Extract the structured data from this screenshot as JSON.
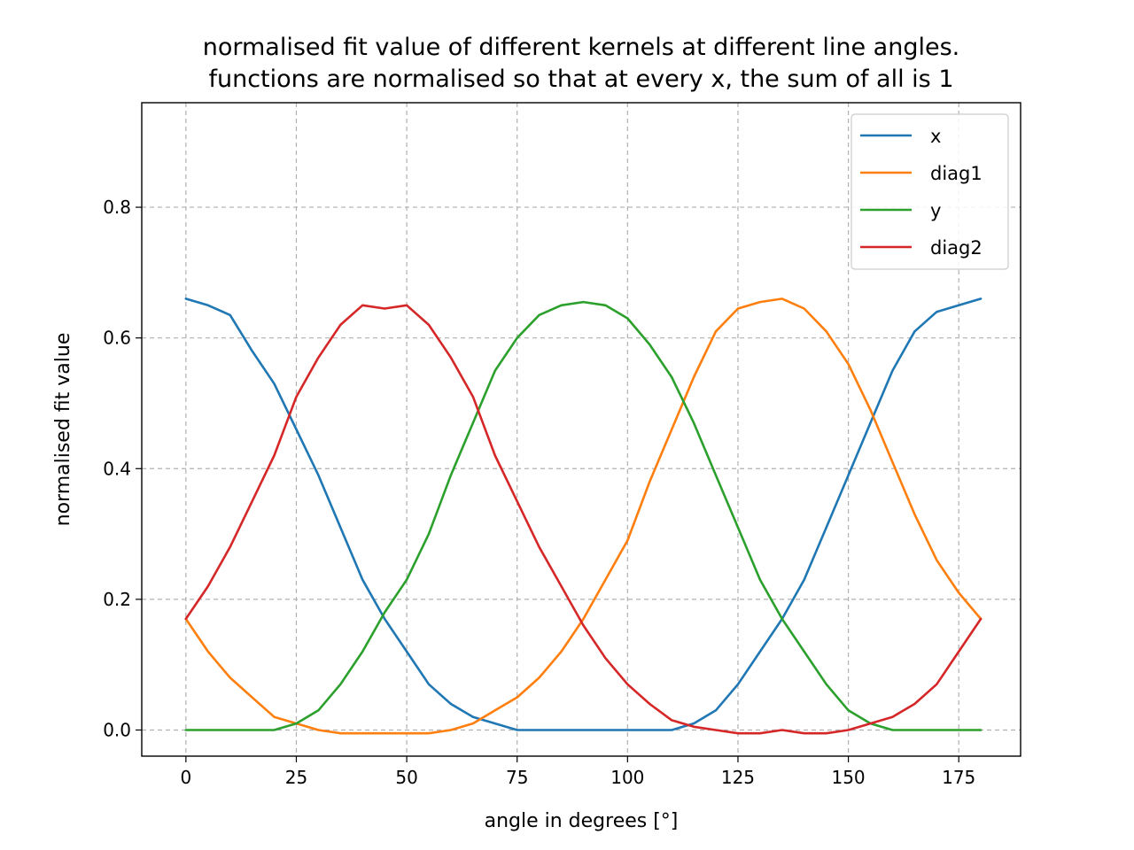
{
  "chart_data": {
    "type": "line",
    "title_line1": "normalised fit value of different kernels at different line angles.",
    "title_line2": "functions are normalised so that at every x, the sum of all is 1",
    "xlabel": "angle in degrees [°]",
    "ylabel": "normalised fit value",
    "xlim": [
      -10,
      189
    ],
    "ylim": [
      -0.04,
      0.96
    ],
    "xticks": [
      0,
      25,
      50,
      75,
      100,
      125,
      150,
      175
    ],
    "yticks": [
      0.0,
      0.2,
      0.4,
      0.6,
      0.8
    ],
    "xtick_labels": [
      "0",
      "25",
      "50",
      "75",
      "100",
      "125",
      "150",
      "175"
    ],
    "ytick_labels": [
      "0.0",
      "0.2",
      "0.4",
      "0.6",
      "0.8"
    ],
    "grid": true,
    "legend_position": "top-right",
    "series": [
      {
        "name": "x",
        "color": "#1f77b4",
        "x": [
          0,
          5,
          10,
          15,
          20,
          25,
          30,
          35,
          40,
          45,
          50,
          55,
          60,
          65,
          70,
          75,
          80,
          90,
          100,
          110,
          115,
          120,
          125,
          130,
          135,
          140,
          145,
          150,
          155,
          160,
          165,
          170,
          175,
          180
        ],
        "y": [
          0.66,
          0.65,
          0.635,
          0.58,
          0.53,
          0.46,
          0.39,
          0.31,
          0.23,
          0.17,
          0.12,
          0.07,
          0.04,
          0.02,
          0.01,
          0.0,
          0.0,
          0.0,
          0.0,
          0.0,
          0.01,
          0.03,
          0.07,
          0.12,
          0.17,
          0.23,
          0.31,
          0.39,
          0.47,
          0.55,
          0.61,
          0.64,
          0.65,
          0.66
        ]
      },
      {
        "name": "diag1",
        "color": "#ff7f0e",
        "x": [
          0,
          5,
          10,
          15,
          20,
          25,
          30,
          35,
          40,
          45,
          50,
          55,
          60,
          65,
          70,
          75,
          80,
          85,
          90,
          95,
          100,
          105,
          110,
          115,
          120,
          125,
          130,
          135,
          140,
          145,
          150,
          155,
          160,
          165,
          170,
          175,
          180
        ],
        "y": [
          0.17,
          0.12,
          0.08,
          0.05,
          0.02,
          0.01,
          0.0,
          -0.005,
          -0.005,
          -0.005,
          -0.005,
          -0.005,
          0.0,
          0.01,
          0.03,
          0.05,
          0.08,
          0.12,
          0.17,
          0.23,
          0.29,
          0.38,
          0.46,
          0.54,
          0.61,
          0.645,
          0.655,
          0.66,
          0.645,
          0.61,
          0.56,
          0.49,
          0.41,
          0.33,
          0.26,
          0.21,
          0.17
        ]
      },
      {
        "name": "y",
        "color": "#2ca02c",
        "x": [
          0,
          10,
          20,
          25,
          30,
          35,
          40,
          45,
          50,
          55,
          60,
          65,
          70,
          75,
          80,
          85,
          90,
          95,
          100,
          105,
          110,
          115,
          120,
          125,
          130,
          135,
          140,
          145,
          150,
          155,
          160,
          170,
          180
        ],
        "y": [
          0.0,
          0.0,
          0.0,
          0.01,
          0.03,
          0.07,
          0.12,
          0.18,
          0.23,
          0.3,
          0.39,
          0.47,
          0.55,
          0.6,
          0.635,
          0.65,
          0.655,
          0.65,
          0.63,
          0.59,
          0.54,
          0.47,
          0.39,
          0.31,
          0.23,
          0.17,
          0.12,
          0.07,
          0.03,
          0.01,
          0.0,
          0.0,
          0.0
        ]
      },
      {
        "name": "diag2",
        "color": "#d62728",
        "x": [
          0,
          5,
          10,
          15,
          20,
          25,
          30,
          35,
          40,
          45,
          50,
          55,
          60,
          65,
          70,
          75,
          80,
          85,
          90,
          95,
          100,
          105,
          110,
          115,
          120,
          125,
          130,
          135,
          140,
          145,
          150,
          155,
          160,
          165,
          170,
          175,
          180
        ],
        "y": [
          0.17,
          0.22,
          0.28,
          0.35,
          0.42,
          0.51,
          0.57,
          0.62,
          0.65,
          0.645,
          0.65,
          0.62,
          0.57,
          0.51,
          0.42,
          0.35,
          0.28,
          0.22,
          0.16,
          0.11,
          0.07,
          0.04,
          0.015,
          0.005,
          0.0,
          -0.005,
          -0.005,
          0.0,
          -0.005,
          -0.005,
          0.0,
          0.01,
          0.02,
          0.04,
          0.07,
          0.12,
          0.17
        ]
      }
    ]
  }
}
